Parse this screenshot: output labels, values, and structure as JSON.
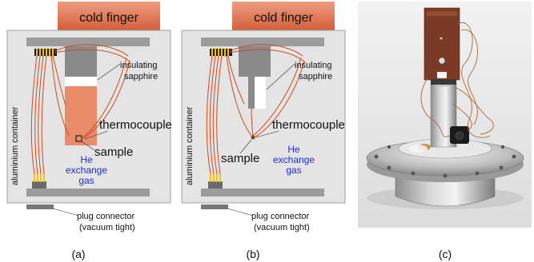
{
  "panels": [
    {
      "id": "a",
      "cold_finger": "cold finger",
      "insulating": [
        "insulating",
        "sapphire"
      ],
      "container": "aluminium container",
      "thermocouple": "thermocouple",
      "sample": "sample",
      "gas": [
        "He",
        "exchange",
        "gas"
      ],
      "plug": [
        "plug connector",
        "(vacuum tight)"
      ],
      "caption": "(a)"
    },
    {
      "id": "b",
      "cold_finger": "cold finger",
      "insulating": [
        "insulating",
        "sapphire"
      ],
      "container": "aluminium container",
      "thermocouple": "thermocouple",
      "sample": "sample",
      "gas": [
        "He",
        "exchange",
        "gas"
      ],
      "plug": [
        "plug connector",
        "(vacuum tight)"
      ],
      "caption": "(b)"
    }
  ],
  "photo_caption": "(c)",
  "colors": {
    "cold_finger": "#e07a5a",
    "container_fill": "#e6e6e6",
    "container_wall": "#9a9a9a",
    "copper_block": "#e98c6a",
    "sapphire": "#ffffff",
    "cold_head": "#8c8c8c",
    "wire": "#d2491e",
    "gas_text": "#1f2bd6",
    "photo_bg": "#ebebeb"
  }
}
